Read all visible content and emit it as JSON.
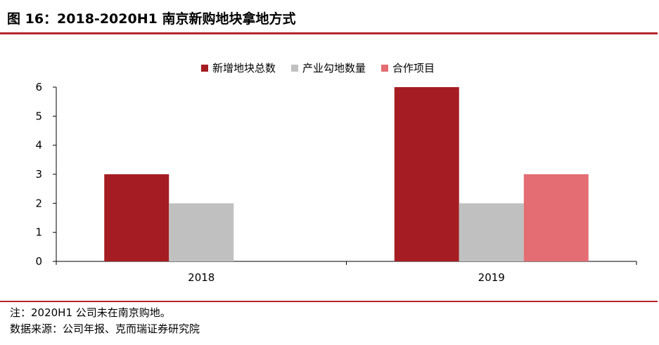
{
  "figure": {
    "title": "图 16：2018-2020H1  南京新购地块拿地方式",
    "note": "注：2020H1 公司未在南京购地。",
    "source": "数据来源：公司年报、克而瑞证券研究院"
  },
  "colors": {
    "accent": "#b5262c",
    "series": [
      "#a51d22",
      "#c0c0c0",
      "#e36d72"
    ]
  },
  "chart_data": {
    "type": "bar",
    "categories": [
      "2018",
      "2019"
    ],
    "series": [
      {
        "name": "新增地块总数",
        "values": [
          3,
          6
        ]
      },
      {
        "name": "产业勾地数量",
        "values": [
          2,
          2
        ]
      },
      {
        "name": "合作项目",
        "values": [
          null,
          3
        ]
      }
    ],
    "ylim": [
      0,
      6
    ],
    "yticks": [
      "0",
      "1",
      "2",
      "3",
      "4",
      "5",
      "6"
    ],
    "xlabel": "",
    "ylabel": "",
    "legend": "top",
    "grid": false
  }
}
